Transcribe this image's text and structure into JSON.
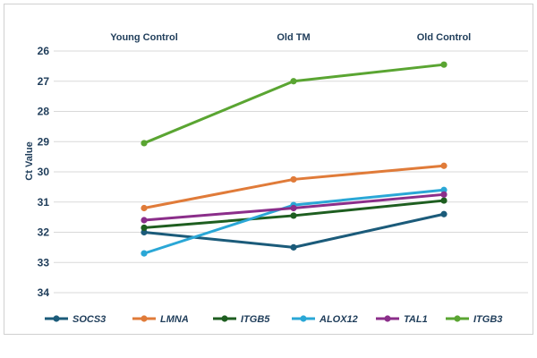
{
  "chart_data": {
    "type": "line",
    "categories": [
      "Young Control",
      "Old TM",
      "Old Control"
    ],
    "ylabel": "Ct Value",
    "ylim": [
      26,
      34
    ],
    "y_reversed": true,
    "y_ticks": [
      26,
      27,
      28,
      29,
      30,
      31,
      32,
      33,
      34
    ],
    "grid": true,
    "legend_position": "bottom",
    "series": [
      {
        "name": "SOCS3",
        "color": "#1b5b7a",
        "values": [
          32.0,
          32.5,
          31.4
        ]
      },
      {
        "name": "LMNA",
        "color": "#e07b39",
        "values": [
          31.2,
          30.25,
          29.8
        ]
      },
      {
        "name": "ITGB5",
        "color": "#1e5e20",
        "values": [
          31.85,
          31.45,
          30.95
        ]
      },
      {
        "name": "ALOX12",
        "color": "#2aa7d6",
        "values": [
          32.7,
          31.1,
          30.6
        ]
      },
      {
        "name": "TAL1",
        "color": "#8b2e8a",
        "values": [
          31.6,
          31.2,
          30.75
        ]
      },
      {
        "name": "ITGB3",
        "color": "#5aa532",
        "values": [
          29.05,
          27.0,
          26.45
        ]
      }
    ]
  }
}
